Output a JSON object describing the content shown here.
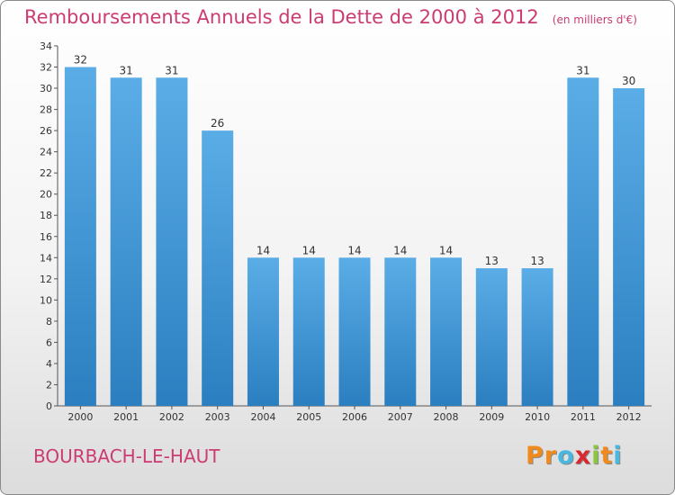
{
  "chart_data": {
    "type": "bar",
    "title": "Remboursements Annuels de la Dette de 2000 à 2012",
    "subtitle": "(en milliers d'€)",
    "categories": [
      "2000",
      "2001",
      "2002",
      "2003",
      "2004",
      "2005",
      "2006",
      "2007",
      "2008",
      "2009",
      "2010",
      "2011",
      "2012"
    ],
    "values": [
      32,
      31,
      31,
      26,
      14,
      14,
      14,
      14,
      14,
      13,
      13,
      31,
      30
    ],
    "ylim": [
      0,
      34
    ],
    "yticks": [
      0,
      2,
      4,
      6,
      8,
      10,
      12,
      14,
      16,
      18,
      20,
      22,
      24,
      26,
      28,
      30,
      32,
      34
    ],
    "xlabel": "",
    "ylabel": "",
    "grid": false,
    "legend": "none",
    "bar_color": "#5aade6",
    "bar_color_dark": "#2b7fc0"
  },
  "footer": {
    "commune": "BOURBACH-LE-HAUT",
    "brand": {
      "letters": [
        "P",
        "r",
        "o",
        "x",
        "i",
        "t",
        "i"
      ],
      "colors": [
        "#f08a1c",
        "#f08a1c",
        "#47b8e0",
        "#d9282f",
        "#8cc63f",
        "#f08a1c",
        "#47b8e0"
      ]
    }
  },
  "colors": {
    "title": "#cc3b72",
    "axis": "#555555",
    "label": "#333333"
  }
}
